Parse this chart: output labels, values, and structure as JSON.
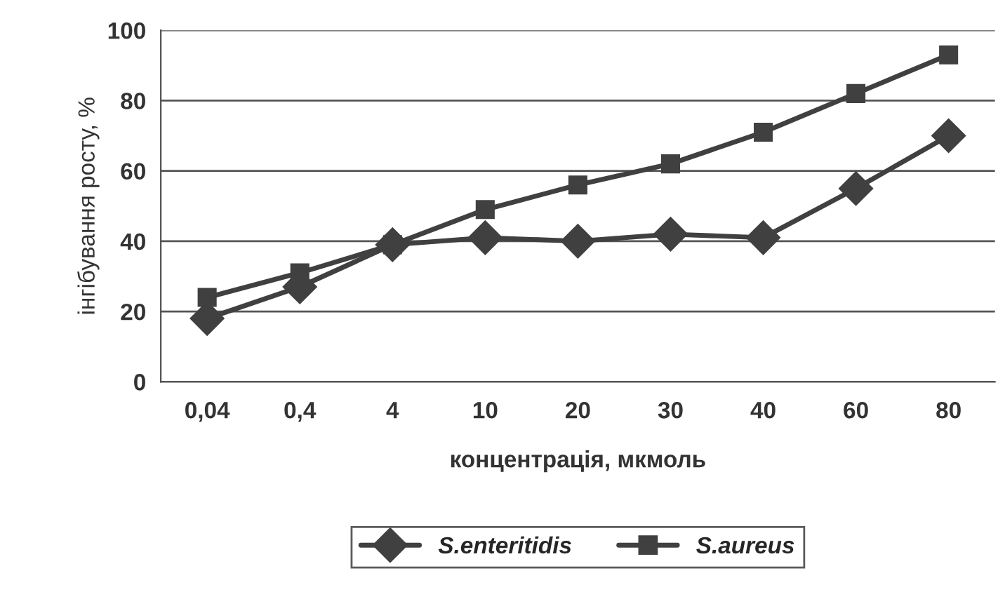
{
  "chart_data": {
    "type": "line",
    "xlabel": "концентрація, мкмоль",
    "ylabel": "інгібування росту, %",
    "categories": [
      "0,04",
      "0,4",
      "4",
      "10",
      "20",
      "30",
      "40",
      "60",
      "80"
    ],
    "series": [
      {
        "name": "S.enteritidis",
        "color": "#404040",
        "marker": "diamond",
        "values": [
          18,
          27,
          39,
          41,
          40,
          42,
          41,
          55,
          70
        ]
      },
      {
        "name": "S.aureus",
        "color": "#404040",
        "marker": "square",
        "values": [
          24,
          31,
          39,
          49,
          56,
          62,
          71,
          82,
          93
        ]
      }
    ],
    "ylim": [
      0,
      100
    ],
    "yticks": [
      0,
      20,
      40,
      60,
      80,
      100
    ],
    "grid": "y",
    "legend": "bottom",
    "line_style": "solid"
  }
}
